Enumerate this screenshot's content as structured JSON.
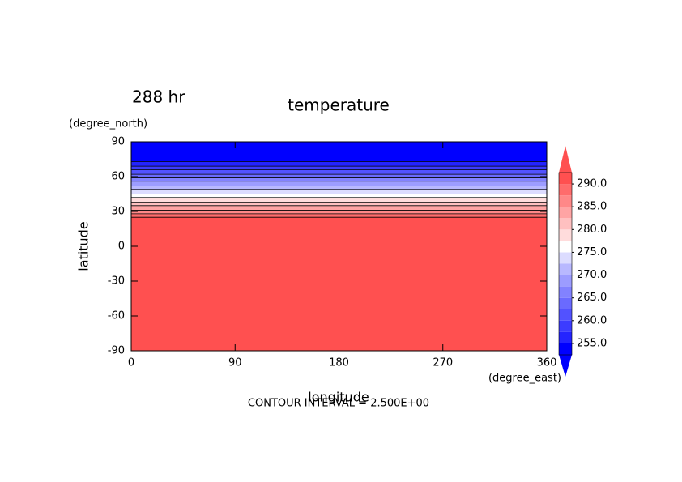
{
  "chart_data": {
    "type": "contour",
    "title": "temperature",
    "time_label": "288 hr",
    "xlabel": "longitude",
    "ylabel": "latitude",
    "xunit": "(degree_east)",
    "yunit": "(degree_north)",
    "note": "CONTOUR INTERVAL = 2.500E+00",
    "xlim": [
      0,
      360
    ],
    "ylim": [
      -90,
      90
    ],
    "xticks": [
      0,
      90,
      180,
      270,
      360
    ],
    "yticks": [
      -90,
      -60,
      -30,
      0,
      30,
      60,
      90
    ],
    "clim": [
      252.5,
      292.5
    ],
    "cticks": [
      {
        "value": 255,
        "label": "255.0"
      },
      {
        "value": 260,
        "label": "260.0"
      },
      {
        "value": 265,
        "label": "265.0"
      },
      {
        "value": 270,
        "label": "270.0"
      },
      {
        "value": 275,
        "label": "275.0"
      },
      {
        "value": 280,
        "label": "280.0"
      },
      {
        "value": 285,
        "label": "285.0"
      },
      {
        "value": 290,
        "label": "290.0"
      }
    ],
    "colors": [
      "#0000ff",
      "#2424ff",
      "#3c3cff",
      "#5252ff",
      "#6a6aff",
      "#8282ff",
      "#9c9cff",
      "#b8b8ff",
      "#dcdcff",
      "#ffffff",
      "#ffdcdc",
      "#ffc0c0",
      "#ffa4a4",
      "#ff8888",
      "#ff6c6c",
      "#ff5050"
    ],
    "contours": {
      "levels": [
        290,
        287.5,
        285,
        282.5,
        280,
        277.5,
        275,
        272.5,
        270,
        267.5,
        265,
        262.5,
        260,
        257.5,
        255
      ],
      "latitudes": [
        25,
        28,
        31,
        35,
        38,
        42,
        45,
        49,
        52,
        56,
        59,
        62,
        66,
        69,
        73
      ]
    }
  }
}
